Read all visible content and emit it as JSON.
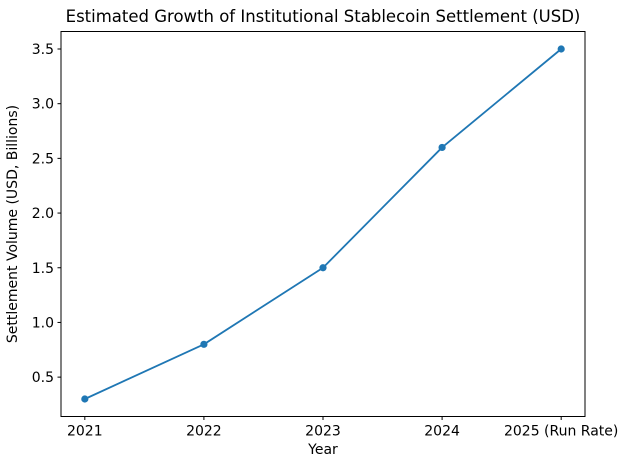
{
  "chart_data": {
    "type": "line",
    "title": "Estimated Growth of Institutional Stablecoin Settlement (USD)",
    "xlabel": "Year",
    "ylabel": "Settlement Volume (USD, Billions)",
    "categories": [
      "2021",
      "2022",
      "2023",
      "2024",
      "2025 (Run Rate)"
    ],
    "series": [
      {
        "name": "Settlement Volume",
        "values": [
          0.3,
          0.8,
          1.5,
          2.6,
          3.5
        ],
        "color": "#1f77b4",
        "marker": "circle"
      }
    ],
    "xlim": [
      -0.2,
      4.2
    ],
    "ylim": [
      0.14,
      3.66
    ],
    "yticks": [
      0.5,
      1.0,
      1.5,
      2.0,
      2.5,
      3.0,
      3.5
    ],
    "ytick_labels": [
      "0.5",
      "1.0",
      "1.5",
      "2.0",
      "2.5",
      "3.0",
      "3.5"
    ],
    "grid": false,
    "legend_position": "none",
    "background_color": "#ffffff",
    "axis_color": "#000000"
  }
}
